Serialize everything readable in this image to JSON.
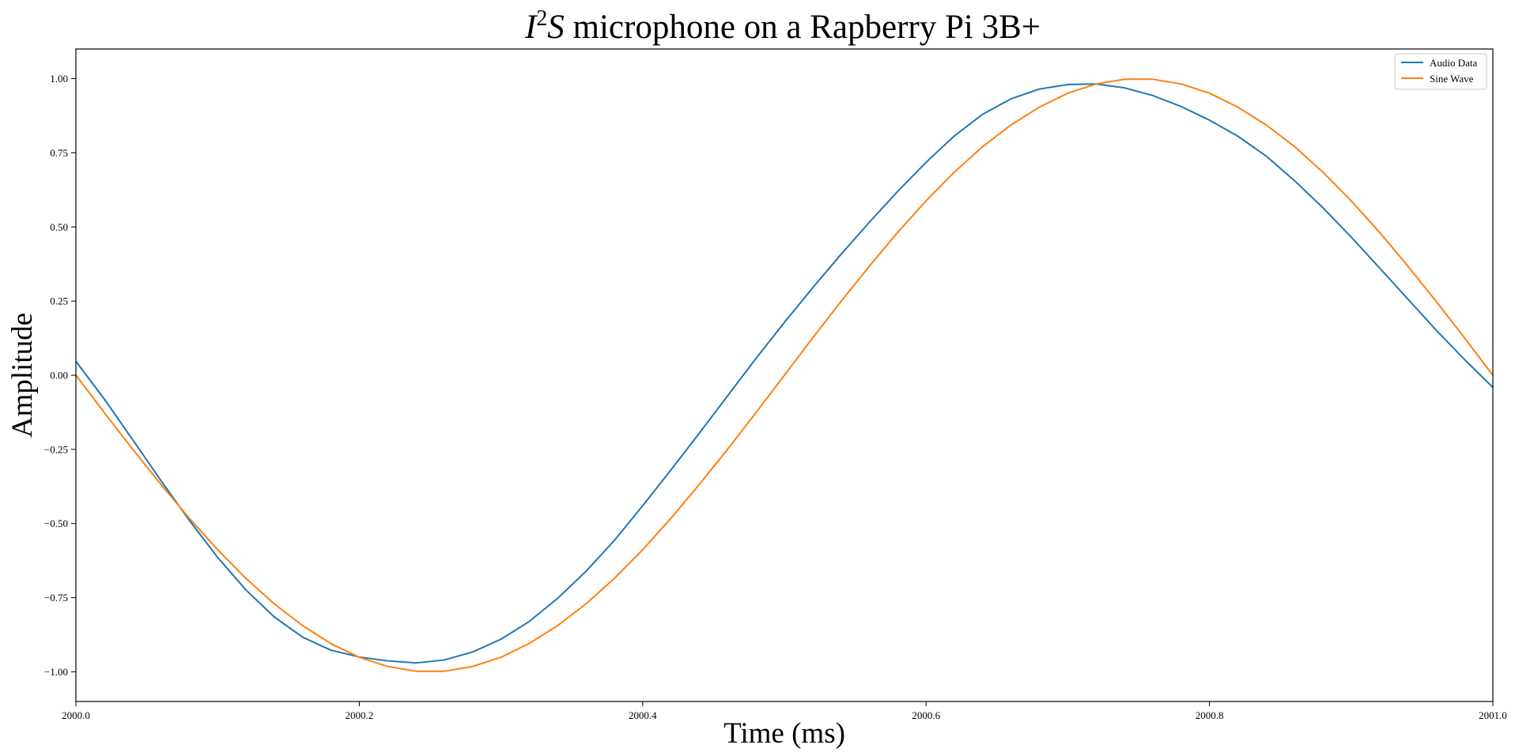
{
  "chart_data": {
    "type": "line",
    "title": {
      "italic_1": "I",
      "superscript": "2",
      "italic_2": "S",
      "rest": " microphone on a Rapberry Pi 3B+"
    },
    "xlabel": "Time (ms)",
    "ylabel": "Amplitude",
    "xlim": [
      2000.0,
      2001.0
    ],
    "ylim": [
      -1.1,
      1.1
    ],
    "x_ticks": [
      2000.0,
      2000.2,
      2000.4,
      2000.6,
      2000.8,
      2001.0
    ],
    "x_tick_labels": [
      "2000.0",
      "2000.2",
      "2000.4",
      "2000.6",
      "2000.8",
      "2001.0"
    ],
    "y_ticks": [
      1.0,
      0.75,
      0.5,
      0.25,
      0.0,
      -0.25,
      -0.5,
      -0.75,
      -1.0
    ],
    "y_tick_labels": [
      "1.00",
      "0.75",
      "0.50",
      "0.25",
      "0.00",
      "−0.25",
      "−0.50",
      "−0.75",
      "−1.00"
    ],
    "grid": false,
    "legend_position": "top-right",
    "x": [
      2000.0,
      2000.02,
      2000.04,
      2000.06,
      2000.08,
      2000.1,
      2000.12,
      2000.14,
      2000.16,
      2000.18,
      2000.2,
      2000.22,
      2000.24,
      2000.26,
      2000.28,
      2000.3,
      2000.32,
      2000.34,
      2000.36,
      2000.38,
      2000.4,
      2000.42,
      2000.44,
      2000.46,
      2000.48,
      2000.5,
      2000.52,
      2000.54,
      2000.56,
      2000.58,
      2000.6,
      2000.62,
      2000.64,
      2000.66,
      2000.68,
      2000.7,
      2000.72,
      2000.74,
      2000.76,
      2000.78,
      2000.8,
      2000.82,
      2000.84,
      2000.86,
      2000.88,
      2000.9,
      2000.92,
      2000.94,
      2000.96,
      2000.98,
      2001.0
    ],
    "series": [
      {
        "name": "Audio Data",
        "color": "#1f77b4",
        "values": [
          0.047,
          -0.08,
          -0.217,
          -0.355,
          -0.489,
          -0.614,
          -0.724,
          -0.815,
          -0.883,
          -0.927,
          -0.95,
          -0.963,
          -0.97,
          -0.96,
          -0.933,
          -0.89,
          -0.83,
          -0.752,
          -0.661,
          -0.557,
          -0.44,
          -0.319,
          -0.195,
          -0.069,
          0.057,
          0.178,
          0.295,
          0.408,
          0.516,
          0.62,
          0.718,
          0.807,
          0.88,
          0.932,
          0.965,
          0.98,
          0.982,
          0.969,
          0.943,
          0.906,
          0.86,
          0.806,
          0.739,
          0.656,
          0.565,
          0.466,
          0.362,
          0.257,
          0.152,
          0.053,
          -0.041
        ]
      },
      {
        "name": "Sine Wave",
        "color": "#ff7f0e",
        "values": [
          0.0,
          -0.126,
          -0.249,
          -0.368,
          -0.482,
          -0.588,
          -0.685,
          -0.771,
          -0.844,
          -0.905,
          -0.951,
          -0.982,
          -0.998,
          -0.998,
          -0.982,
          -0.951,
          -0.904,
          -0.844,
          -0.771,
          -0.685,
          -0.588,
          -0.482,
          -0.368,
          -0.249,
          -0.126,
          0.0,
          0.126,
          0.249,
          0.368,
          0.482,
          0.588,
          0.685,
          0.771,
          0.844,
          0.904,
          0.951,
          0.982,
          0.998,
          0.998,
          0.982,
          0.951,
          0.904,
          0.844,
          0.771,
          0.685,
          0.588,
          0.482,
          0.368,
          0.249,
          0.126,
          0.0
        ]
      }
    ]
  }
}
